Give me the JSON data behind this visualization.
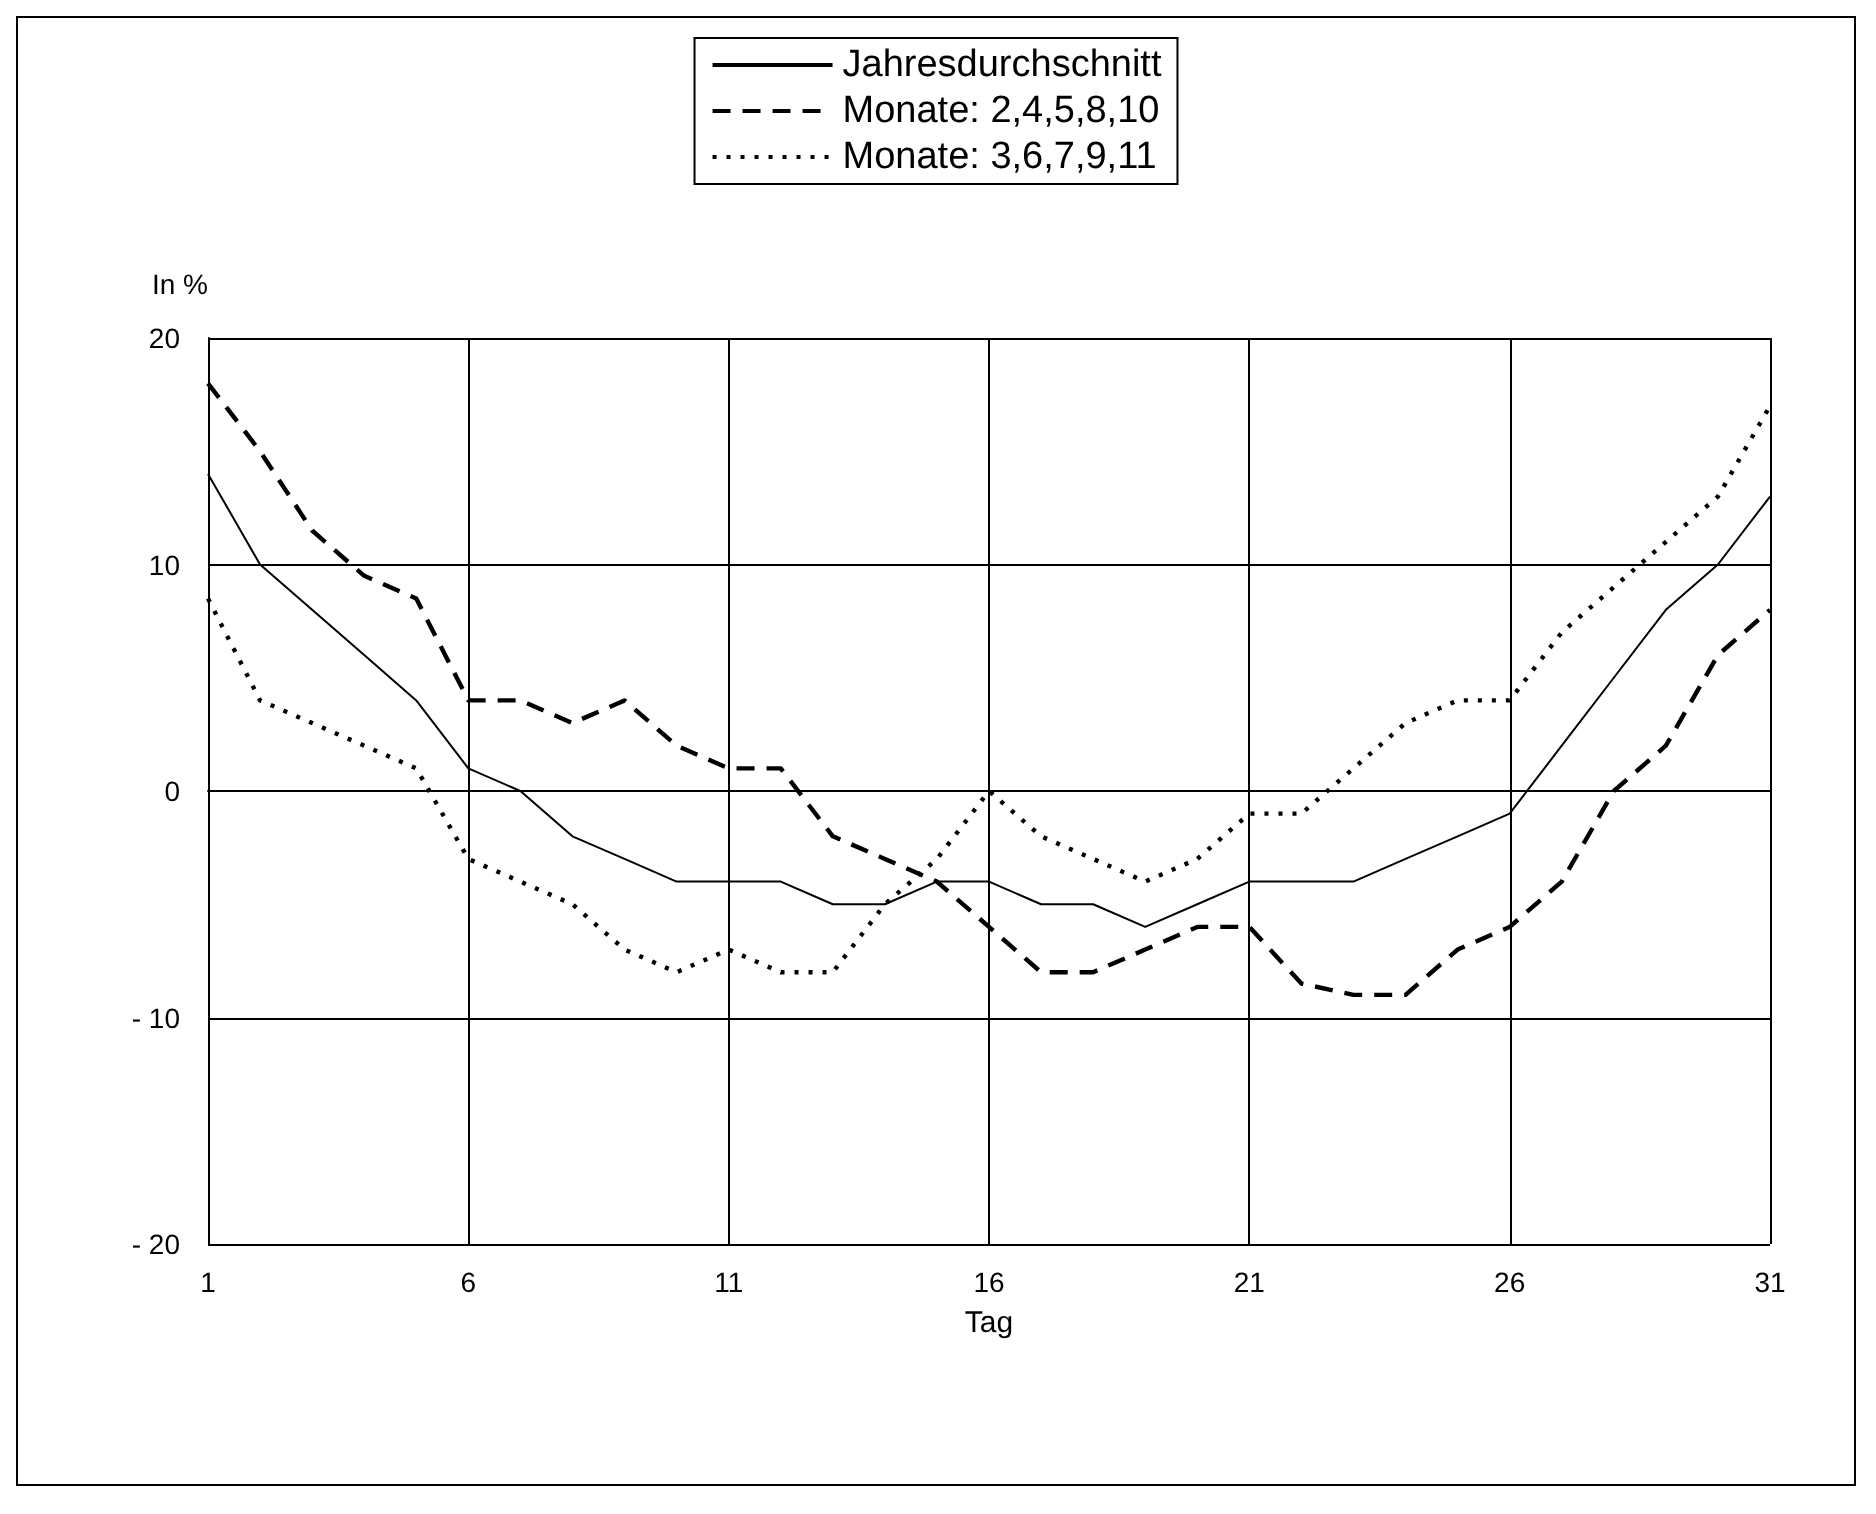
{
  "chart_data": {
    "type": "line",
    "xlabel": "Tag",
    "ylabel": "In %",
    "x": [
      1,
      2,
      3,
      4,
      5,
      6,
      7,
      8,
      9,
      10,
      11,
      12,
      13,
      14,
      15,
      16,
      17,
      18,
      19,
      20,
      21,
      22,
      23,
      24,
      25,
      26,
      27,
      28,
      29,
      30,
      31
    ],
    "series": [
      {
        "name": "Jahresdurchschnitt",
        "color": "#000000",
        "line_style": "solid",
        "values": [
          14,
          10,
          8,
          6,
          4,
          1,
          0,
          -2,
          -3,
          -4,
          -4,
          -4,
          -5,
          -5,
          -4,
          -4,
          -5,
          -5,
          -6,
          -5,
          -4,
          -4,
          -4,
          -3,
          -2,
          -1,
          2,
          5,
          8,
          10,
          13
        ]
      },
      {
        "name": "Monate: 2,4,5,8,10",
        "color": "#000000",
        "line_style": "dashed",
        "values": [
          18,
          15,
          11.5,
          9.5,
          8.5,
          4,
          4,
          3,
          4,
          2,
          1,
          1,
          -2,
          -3,
          -4,
          -6,
          -8,
          -8,
          -7,
          -6,
          -6,
          -8.5,
          -9,
          -9,
          -7,
          -6,
          -4,
          0,
          2,
          6,
          8
        ]
      },
      {
        "name": "Monate: 3,6,7,9,11",
        "color": "#000000",
        "line_style": "dotted",
        "values": [
          8.5,
          4,
          3,
          2,
          1,
          -3,
          -4,
          -5,
          -7,
          -8,
          -7,
          -8,
          -8,
          -5,
          -3,
          0,
          -2,
          -3,
          -4,
          -3,
          -1,
          -1,
          1,
          3,
          4,
          4,
          7,
          9,
          11,
          13,
          17
        ]
      }
    ],
    "xlim": [
      1,
      31
    ],
    "xticks": [
      1,
      6,
      11,
      16,
      21,
      26,
      31
    ],
    "ylim": [
      -20,
      20
    ],
    "yticks": [
      {
        "value": -20,
        "label": "- 20"
      },
      {
        "value": -10,
        "label": "- 10"
      },
      0,
      10,
      20
    ],
    "grid": true,
    "legend": "top",
    "marker": "none"
  }
}
